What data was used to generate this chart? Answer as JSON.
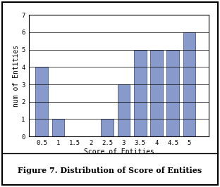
{
  "categories": [
    0.5,
    1,
    1.5,
    2,
    2.5,
    3,
    3.5,
    4,
    4.5,
    5
  ],
  "values": [
    4,
    1,
    0,
    0,
    1,
    3,
    5,
    5,
    5,
    6
  ],
  "bar_color": "#8899cc",
  "bar_edgecolor": "#556699",
  "title": "Figure 7. Distribution of Score of Entities",
  "xlabel": "Score of Entities",
  "ylabel": "num of Entities",
  "ylim": [
    0,
    7
  ],
  "yticks": [
    0,
    1,
    2,
    3,
    4,
    5,
    6,
    7
  ],
  "xtick_labels": [
    "0.5",
    "1",
    "1.5",
    "2",
    "2.5",
    "3",
    "3.5",
    "4",
    "4.5",
    "5"
  ],
  "bar_width": 0.38,
  "background_color": "#ffffff",
  "title_fontsize": 8,
  "axis_fontsize": 7,
  "tick_fontsize": 6.5
}
